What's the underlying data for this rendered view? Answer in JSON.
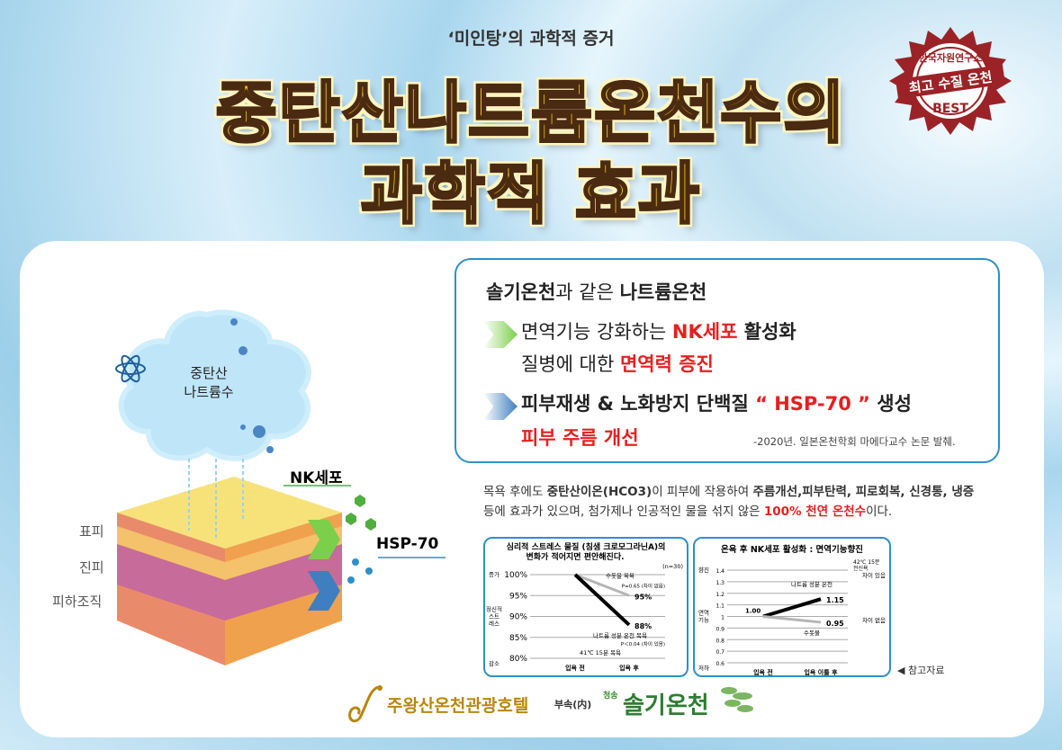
{
  "header": {
    "subtitle": "‘미인탕’의 과학적 증거",
    "title_line1": "중탄산나트륨온천수의",
    "title_line2": "과학적 효과"
  },
  "badge": {
    "top_text": "한국자원연구소",
    "middle_text": "최고 수질 온천",
    "bottom_text": "BEST",
    "color": "#9b2226"
  },
  "illustration": {
    "cloud_label_1": "중탄산",
    "cloud_label_2": "나트륨수",
    "layers": [
      "표피",
      "진피",
      "피하조직"
    ],
    "nk_label": "NK세포",
    "hsp_label": "HSP-70"
  },
  "info_box": {
    "heading_a": "솔기온천",
    "heading_b": "과 같은 ",
    "heading_c": "나트륨온천",
    "point1_a": "면역기능 강화하는 ",
    "point1_b": "NK세포",
    "point1_c": " 활성화",
    "point1_line2_a": "질병에 대한 ",
    "point1_line2_b": "면역력 증진",
    "point2_a": "피부재생 & 노화방지 단백질 ",
    "point2_b": "“ HSP-70 ”",
    "point2_c": " 생성",
    "point2_line2": "피부 주름 개선",
    "source": "-2020년. 일본온천학회 마에다교수 논문 발췌."
  },
  "description": {
    "l1_a": "목욕 후에도 ",
    "l1_b": "중탄산이온(HCO3)",
    "l1_c": "이 피부에 작용하여 ",
    "l1_d": "주름개선,피부탄력, 피로회복, 신경통, 냉증",
    "l2_a": "등에 효과가 있으며, 첨가제나 인공적인 물을 섞지 않은 ",
    "l2_b": "100% 천연 온천수",
    "l2_c": "이다."
  },
  "chart_data": [
    {
      "type": "line",
      "title": "심리적 스트레스 물질 (침샘 크로모그라닌A)의 변화가 적어지면 편안해진다.",
      "note": "(n=30)",
      "categories": [
        "입욕 전",
        "입욕 후"
      ],
      "ylim": [
        80,
        100
      ],
      "yticks": [
        "100%",
        "95%",
        "90%",
        "85%",
        "80%"
      ],
      "ylabel_top": "증가",
      "ylabel_mid": "정신적 스트레스",
      "ylabel_bottom": "감소",
      "series": [
        {
          "name": "수돗물 목욕",
          "values": [
            100,
            95
          ],
          "label": "95%",
          "pnote": "P=0.65 (차이 없음)",
          "color": "#b5b5b5"
        },
        {
          "name": "나트륨 성분 온천 목욕",
          "values": [
            100,
            88
          ],
          "label": "88%",
          "pnote": "P＜0.04 (차이 있음)",
          "color": "#000000"
        }
      ],
      "footnote": "41℃ 15분 목욕"
    },
    {
      "type": "line",
      "title": "온욕 후 NK세포 활성화 : 면역기능향진",
      "categories": [
        "입욕 전",
        "입욕 이틀 후"
      ],
      "ylim": [
        0.6,
        1.4
      ],
      "yticks": [
        "1.4",
        "1.3",
        "1.2",
        "1.1",
        "1",
        "0.9",
        "0.8",
        "0.7",
        "0.6"
      ],
      "ylabel_top": "향진",
      "ylabel_mid": "면역 기능",
      "ylabel_bottom": "저하",
      "start_label": "1.00",
      "condition": "42℃ 15분 전신욕",
      "series": [
        {
          "name": "나트륨 성분 온천",
          "values": [
            1.0,
            1.15
          ],
          "label": "1.15",
          "result": "차이 있음",
          "color": "#000000"
        },
        {
          "name": "수돗물",
          "values": [
            1.0,
            0.95
          ],
          "label": "0.95",
          "result": "차이 없음",
          "color": "#b5b5b5"
        }
      ]
    }
  ],
  "reference": "◀ 참고자료",
  "footer": {
    "hotel": "주왕산온천관광호텔",
    "affiliation": "부속(内)",
    "brand_small": "청송",
    "brand": "솔기온천"
  }
}
